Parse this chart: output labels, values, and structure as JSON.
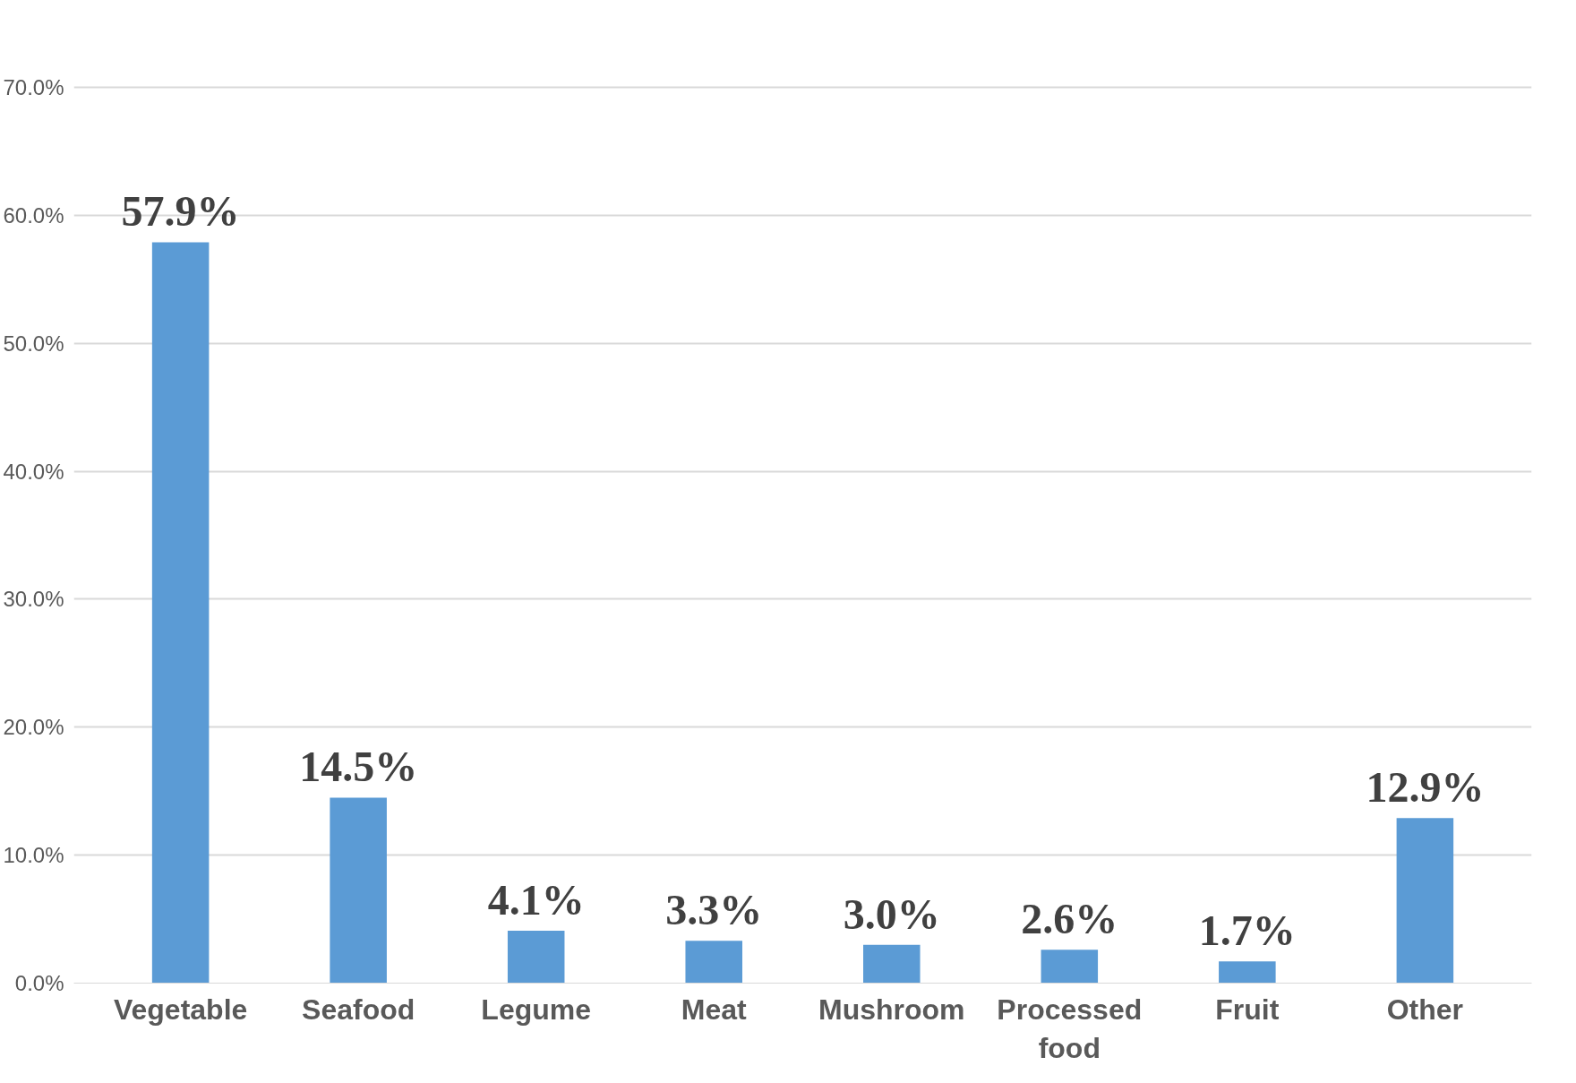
{
  "chart_data": {
    "type": "bar",
    "categories": [
      "Vegetable",
      "Seafood",
      "Legume",
      "Meat",
      "Mushroom",
      "Processed food",
      "Fruit",
      "Other"
    ],
    "values": [
      57.9,
      14.5,
      4.1,
      3.3,
      3.0,
      2.6,
      1.7,
      12.9
    ],
    "value_labels": [
      "57.9%",
      "14.5%",
      "4.1%",
      "3.3%",
      "3.0%",
      "2.6%",
      "1.7%",
      "12.9%"
    ],
    "color": "#5b9bd5",
    "ylim": [
      0,
      70
    ],
    "yticks": [
      {
        "value": 0,
        "label": "0.0%"
      },
      {
        "value": 10,
        "label": "10.0%"
      },
      {
        "value": 20,
        "label": "20.0%"
      },
      {
        "value": 30,
        "label": "30.0%"
      },
      {
        "value": 40,
        "label": "40.0%"
      },
      {
        "value": 50,
        "label": "50.0%"
      },
      {
        "value": 60,
        "label": "60.0%"
      },
      {
        "value": 70,
        "label": "70.0%"
      }
    ],
    "grid": "y"
  }
}
